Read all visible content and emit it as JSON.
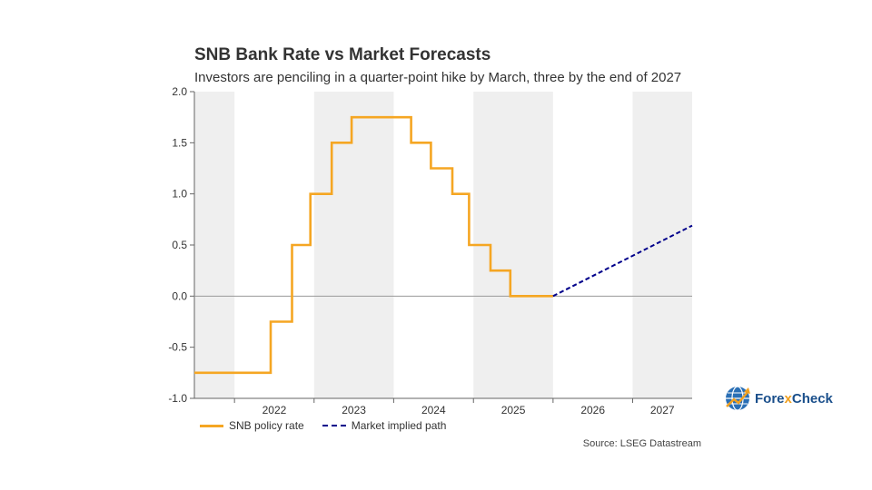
{
  "header": {
    "title": "SNB Bank Rate vs Market Forecasts",
    "subtitle": "Investors are penciling in a quarter-point hike by March, three by the end of 2027"
  },
  "legend": {
    "policy_label": "SNB policy rate",
    "market_label": "Market implied path"
  },
  "source": "Source: LSEG Datastream",
  "logo": {
    "prefix": "Fore",
    "x": "x",
    "suffix": "Check",
    "icon": "globe-arrow-icon"
  },
  "colors": {
    "policy": "#f5a623",
    "market": "#00008b",
    "shade": "#efefef",
    "zero_line": "#999999"
  },
  "chart_data": {
    "type": "line",
    "title": "SNB Bank Rate vs Market Forecasts",
    "subtitle": "Investors are penciling in a quarter-point hike by March, three by the end of 2027",
    "xlabel": "",
    "ylabel": "",
    "xlim": [
      "2021-07-01",
      "2027-10-01"
    ],
    "ylim": [
      -1.0,
      2.0
    ],
    "yticks": [
      "2.0",
      "1.5",
      "1.0",
      "0.5",
      "0.0",
      "-0.5",
      "-1.0"
    ],
    "xticks": [
      "2022",
      "2023",
      "2024",
      "2025",
      "2026",
      "2027"
    ],
    "shaded_years": [
      "2021",
      "2023",
      "2025",
      "2027"
    ],
    "grid": false,
    "legend_position": "bottom-left",
    "series": [
      {
        "name": "SNB policy rate",
        "style": "solid",
        "points": [
          {
            "x": "2021-07-01",
            "y": -0.75
          },
          {
            "x": "2022-06-16",
            "y": -0.75
          },
          {
            "x": "2022-06-16",
            "y": -0.25
          },
          {
            "x": "2022-09-22",
            "y": -0.25
          },
          {
            "x": "2022-09-22",
            "y": 0.5
          },
          {
            "x": "2022-12-15",
            "y": 0.5
          },
          {
            "x": "2022-12-15",
            "y": 1.0
          },
          {
            "x": "2023-03-23",
            "y": 1.0
          },
          {
            "x": "2023-03-23",
            "y": 1.5
          },
          {
            "x": "2023-06-22",
            "y": 1.5
          },
          {
            "x": "2023-06-22",
            "y": 1.75
          },
          {
            "x": "2024-03-21",
            "y": 1.75
          },
          {
            "x": "2024-03-21",
            "y": 1.5
          },
          {
            "x": "2024-06-20",
            "y": 1.5
          },
          {
            "x": "2024-06-20",
            "y": 1.25
          },
          {
            "x": "2024-09-26",
            "y": 1.25
          },
          {
            "x": "2024-09-26",
            "y": 1.0
          },
          {
            "x": "2024-12-12",
            "y": 1.0
          },
          {
            "x": "2024-12-12",
            "y": 0.5
          },
          {
            "x": "2025-03-20",
            "y": 0.5
          },
          {
            "x": "2025-03-20",
            "y": 0.25
          },
          {
            "x": "2025-06-19",
            "y": 0.25
          },
          {
            "x": "2025-06-19",
            "y": 0.0
          },
          {
            "x": "2026-01-01",
            "y": 0.0
          }
        ]
      },
      {
        "name": "Market implied path",
        "style": "dashed",
        "points": [
          {
            "x": "2026-01-01",
            "y": 0.0
          },
          {
            "x": "2027-10-01",
            "y": 0.69
          }
        ]
      }
    ]
  }
}
